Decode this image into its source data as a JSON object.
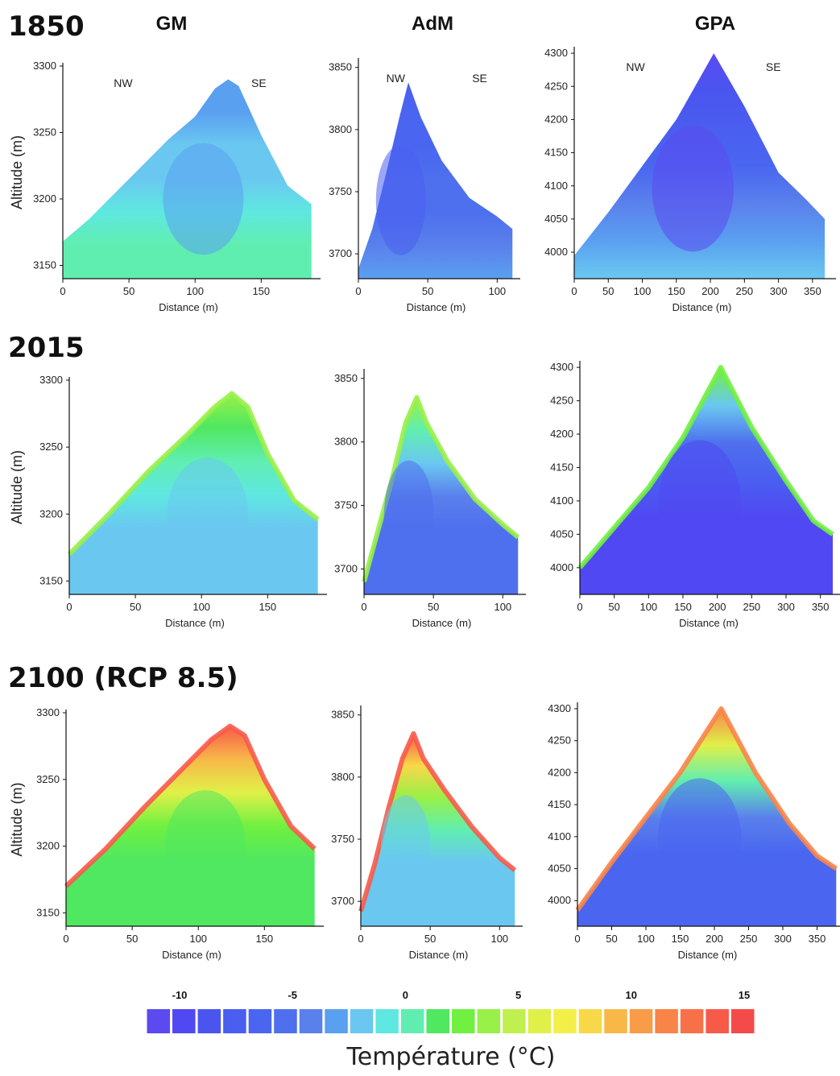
{
  "page": {
    "columns": [
      "GM",
      "AdM",
      "GPA"
    ],
    "rows": [
      "1850",
      "2015",
      "2100 (RCP 8.5)"
    ],
    "y_axis_label": "Altitude (m)",
    "x_axis_label": "Distance (m)",
    "side_labels": {
      "left": "NW",
      "right": "SE"
    }
  },
  "chart_data": [
    {
      "type": "heatmap",
      "row": "1850",
      "column": "GM",
      "xlabel": "Distance (m)",
      "ylabel": "Altitude (m)",
      "xlim": [
        0,
        190
      ],
      "ylim": [
        3140,
        3300
      ],
      "x_ticks": [
        0,
        50,
        100,
        150
      ],
      "y_ticks": [
        3300,
        3250,
        3200,
        3150
      ],
      "profile": [
        [
          0,
          3168
        ],
        [
          20,
          3185
        ],
        [
          40,
          3205
        ],
        [
          60,
          3225
        ],
        [
          80,
          3245
        ],
        [
          100,
          3262
        ],
        [
          115,
          3283
        ],
        [
          125,
          3290
        ],
        [
          133,
          3285
        ],
        [
          150,
          3248
        ],
        [
          170,
          3210
        ],
        [
          188,
          3196
        ]
      ],
      "temperature_range_c": [
        -3,
        1
      ]
    },
    {
      "type": "heatmap",
      "row": "1850",
      "column": "AdM",
      "xlabel": "Distance (m)",
      "ylabel": "Altitude (m)",
      "xlim": [
        0,
        112
      ],
      "ylim": [
        3680,
        3855
      ],
      "x_ticks": [
        0,
        50,
        100
      ],
      "y_ticks": [
        3850,
        3800,
        3750,
        3700
      ],
      "profile": [
        [
          0,
          3688
        ],
        [
          10,
          3720
        ],
        [
          20,
          3765
        ],
        [
          30,
          3812
        ],
        [
          36,
          3838
        ],
        [
          45,
          3810
        ],
        [
          60,
          3775
        ],
        [
          80,
          3745
        ],
        [
          100,
          3730
        ],
        [
          111,
          3720
        ]
      ],
      "temperature_range_c": [
        -7,
        -3
      ]
    },
    {
      "type": "heatmap",
      "row": "1850",
      "column": "GPA",
      "xlabel": "Distance (m)",
      "ylabel": "Altitude (m)",
      "xlim": [
        0,
        375
      ],
      "ylim": [
        3960,
        4305
      ],
      "x_ticks": [
        0,
        50,
        100,
        150,
        200,
        250,
        300,
        350
      ],
      "y_ticks": [
        4300,
        4250,
        4200,
        4150,
        4100,
        4050,
        4000
      ],
      "profile": [
        [
          0,
          3995
        ],
        [
          50,
          4060
        ],
        [
          100,
          4130
        ],
        [
          150,
          4200
        ],
        [
          205,
          4300
        ],
        [
          250,
          4220
        ],
        [
          300,
          4120
        ],
        [
          340,
          4080
        ],
        [
          368,
          4050
        ]
      ],
      "temperature_range_c": [
        -10,
        -1
      ]
    },
    {
      "type": "heatmap",
      "row": "2015",
      "column": "GM",
      "xlabel": "Distance (m)",
      "ylabel": "Altitude (m)",
      "xlim": [
        0,
        190
      ],
      "ylim": [
        3140,
        3300
      ],
      "x_ticks": [
        0,
        50,
        100,
        150
      ],
      "y_ticks": [
        3300,
        3250,
        3200,
        3150
      ],
      "profile": [
        [
          0,
          3170
        ],
        [
          30,
          3200
        ],
        [
          60,
          3232
        ],
        [
          90,
          3260
        ],
        [
          110,
          3280
        ],
        [
          123,
          3290
        ],
        [
          135,
          3280
        ],
        [
          150,
          3245
        ],
        [
          170,
          3210
        ],
        [
          188,
          3196
        ]
      ],
      "temperature_range_c": [
        -1,
        4
      ]
    },
    {
      "type": "heatmap",
      "row": "2015",
      "column": "AdM",
      "xlabel": "Distance (m)",
      "ylabel": "Altitude (m)",
      "xlim": [
        0,
        112
      ],
      "ylim": [
        3680,
        3855
      ],
      "x_ticks": [
        0,
        50,
        100
      ],
      "y_ticks": [
        3850,
        3800,
        3750,
        3700
      ],
      "profile": [
        [
          0,
          3690
        ],
        [
          10,
          3730
        ],
        [
          20,
          3770
        ],
        [
          30,
          3815
        ],
        [
          38,
          3835
        ],
        [
          45,
          3815
        ],
        [
          60,
          3785
        ],
        [
          80,
          3755
        ],
        [
          100,
          3735
        ],
        [
          111,
          3725
        ]
      ],
      "temperature_range_c": [
        -5,
        4
      ]
    },
    {
      "type": "heatmap",
      "row": "2015",
      "column": "GPA",
      "xlabel": "Distance (m)",
      "ylabel": "Altitude (m)",
      "xlim": [
        0,
        375
      ],
      "ylim": [
        3960,
        4305
      ],
      "x_ticks": [
        0,
        50,
        100,
        150,
        200,
        250,
        300,
        350
      ],
      "y_ticks": [
        4300,
        4250,
        4200,
        4150,
        4100,
        4050,
        4000
      ],
      "profile": [
        [
          0,
          4000
        ],
        [
          50,
          4060
        ],
        [
          100,
          4120
        ],
        [
          150,
          4195
        ],
        [
          205,
          4300
        ],
        [
          250,
          4210
        ],
        [
          300,
          4130
        ],
        [
          340,
          4070
        ],
        [
          368,
          4050
        ]
      ],
      "temperature_range_c": [
        -9,
        3
      ]
    },
    {
      "type": "heatmap",
      "row": "2100 (RCP 8.5)",
      "column": "GM",
      "xlabel": "Distance (m)",
      "ylabel": "Altitude (m)",
      "xlim": [
        0,
        190
      ],
      "ylim": [
        3140,
        3300
      ],
      "x_ticks": [
        0,
        50,
        100,
        150
      ],
      "y_ticks": [
        3300,
        3250,
        3200,
        3150
      ],
      "profile": [
        [
          0,
          3170
        ],
        [
          30,
          3198
        ],
        [
          60,
          3230
        ],
        [
          90,
          3260
        ],
        [
          110,
          3280
        ],
        [
          124,
          3290
        ],
        [
          135,
          3283
        ],
        [
          150,
          3250
        ],
        [
          170,
          3215
        ],
        [
          188,
          3198
        ]
      ],
      "temperature_range_c": [
        2,
        14
      ]
    },
    {
      "type": "heatmap",
      "row": "2100 (RCP 8.5)",
      "column": "AdM",
      "xlabel": "Distance (m)",
      "ylabel": "Altitude (m)",
      "xlim": [
        0,
        112
      ],
      "ylim": [
        3680,
        3855
      ],
      "x_ticks": [
        0,
        50,
        100
      ],
      "y_ticks": [
        3850,
        3800,
        3750,
        3700
      ],
      "profile": [
        [
          0,
          3692
        ],
        [
          10,
          3730
        ],
        [
          20,
          3775
        ],
        [
          30,
          3815
        ],
        [
          38,
          3835
        ],
        [
          45,
          3815
        ],
        [
          60,
          3790
        ],
        [
          80,
          3760
        ],
        [
          100,
          3735
        ],
        [
          111,
          3725
        ]
      ],
      "temperature_range_c": [
        -1,
        14
      ]
    },
    {
      "type": "heatmap",
      "row": "2100 (RCP 8.5)",
      "column": "GPA",
      "xlabel": "Distance (m)",
      "ylabel": "Altitude (m)",
      "xlim": [
        0,
        380
      ],
      "ylim": [
        3960,
        4305
      ],
      "x_ticks": [
        0,
        50,
        100,
        150,
        200,
        250,
        300,
        350
      ],
      "y_ticks": [
        4300,
        4250,
        4200,
        4150,
        4100,
        4050,
        4000
      ],
      "profile": [
        [
          0,
          3985
        ],
        [
          50,
          4060
        ],
        [
          100,
          4130
        ],
        [
          150,
          4200
        ],
        [
          210,
          4300
        ],
        [
          260,
          4200
        ],
        [
          310,
          4120
        ],
        [
          350,
          4070
        ],
        [
          378,
          4050
        ]
      ],
      "temperature_range_c": [
        -6,
        12
      ]
    }
  ],
  "legend": {
    "title": "Température (°C)",
    "tick_labels": [
      "-10",
      "-5",
      "0",
      "5",
      "10",
      "15"
    ],
    "tick_values": [
      -10,
      -5,
      0,
      5,
      10,
      15
    ],
    "colors": [
      "#5b4af0",
      "#5048f2",
      "#4a55f0",
      "#4a5ef0",
      "#4a66f0",
      "#4e70ee",
      "#5a80ec",
      "#5aa0f0",
      "#6ac8f0",
      "#5ee8e0",
      "#60eeb0",
      "#50e860",
      "#70f040",
      "#98f048",
      "#c0f050",
      "#e0f048",
      "#f2f048",
      "#f8d848",
      "#f8b848",
      "#f89c48",
      "#f88448",
      "#f87048",
      "#f85a4a",
      "#f44a4a"
    ]
  }
}
